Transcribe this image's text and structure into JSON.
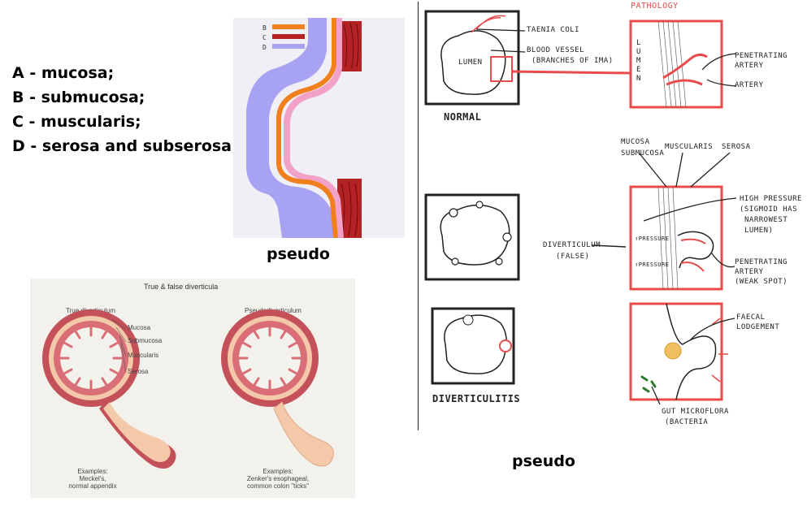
{
  "legend": {
    "a": "A - mucosa;",
    "b": "B - submucosa;",
    "c": "C - muscularis;",
    "d": "D - serosa and subserosa"
  },
  "top_diagram": {
    "key_letters": [
      "B",
      "C",
      "D"
    ],
    "layer_colors": {
      "mucosa": "#f2a2c8",
      "submucosa": "#f07f1d",
      "muscularis": "#b42323",
      "serosa": "#a7a3f2"
    }
  },
  "captions": {
    "pseudo_left": "pseudo",
    "pseudo_right": "pseudo"
  },
  "textbook_figure": {
    "title": "True & false diverticula",
    "true_title": "True diverticulum",
    "pseudo_title": "Pseudodiverticulum",
    "layer_labels": [
      "Mucosa",
      "Submucosa",
      "Muscularis",
      "Serosa"
    ],
    "true_examples_1": "Examples:",
    "true_examples_2": "Meckel's,",
    "true_examples_3": "normal appendix",
    "pseudo_examples_1": "Examples:",
    "pseudo_examples_2": "Zenker's esophageal,",
    "pseudo_examples_3": "common colon \"ticks\""
  },
  "sketch": {
    "pathology": "PATHOLOGY",
    "taenia_coli": "TAENIA COLI",
    "blood_vessel": "BLOOD VESSEL",
    "branches": "(BRANCHES OF IMA)",
    "lumen_normal": "LUMEN",
    "normal": "NORMAL",
    "lumen_vertical": "LUMEN",
    "penetrating_artery_1": "PENETRATING",
    "penetrating_artery_2": "ARTERY",
    "artery": "ARTERY",
    "mucosa": "MUCOSA",
    "submucosa": "SUBMUCOSA",
    "muscularis": "MUSCULARIS",
    "serosa": "SEROSA",
    "high_pressure_1": "HIGH PRESSURE",
    "high_pressure_2": "(SIGMOID HAS",
    "high_pressure_3": "NARROWEST",
    "high_pressure_4": "LUMEN)",
    "pressure_1": "↑PRESSURE",
    "pressure_2": "↑PRESSURE",
    "diverticulum_1": "DIVERTICULUM",
    "diverticulum_2": "(FALSE)",
    "pen_artery_weak_1": "PENETRATING",
    "pen_artery_weak_2": "ARTERY",
    "pen_artery_weak_3": "(WEAK SPOT)",
    "faecal_1": "FAECAL",
    "faecal_2": "LODGEMENT",
    "diverticulitis": "DIVERTICULITIS",
    "gut_1": "GUT MICROFLORA",
    "gut_2": "(BACTERIA"
  }
}
